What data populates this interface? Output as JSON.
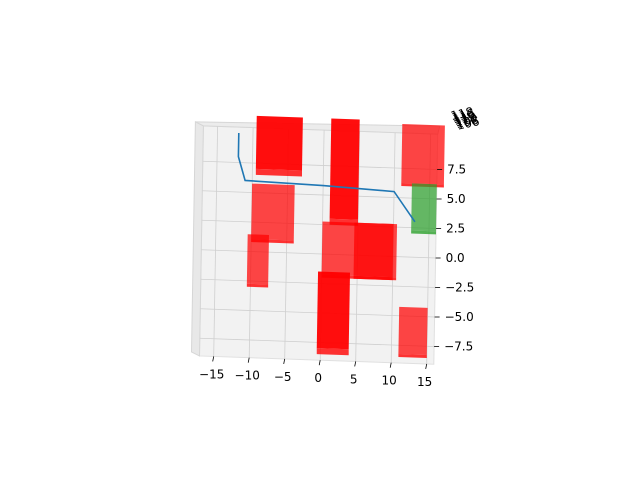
{
  "chart_data": {
    "type": "3d-scene",
    "title": "",
    "xlabel": "",
    "ylabel": "",
    "zlabel": "",
    "xlim": [
      -17,
      16
    ],
    "ylim": [
      -9,
      10.5
    ],
    "grid": true,
    "x_ticks": [
      "−15",
      "−10",
      "−5",
      "0",
      "5",
      "10",
      "15"
    ],
    "y_ticks": [
      "7.5",
      "5.0",
      "2.5",
      "0.0",
      "−2.5",
      "−5.0",
      "−7.5"
    ],
    "z_ticks": [
      "118",
      "116",
      "114",
      "112",
      "110",
      "108",
      "106"
    ],
    "obstacle_color": "#ff0000",
    "goal_color": "#2ca02c",
    "path_color": "#1f77b4",
    "obstacles": [
      {
        "x": [
          -9.5,
          -3
        ],
        "y": [
          6.5,
          11
        ],
        "height": "tall"
      },
      {
        "x": [
          1,
          5
        ],
        "y": [
          2.5,
          11
        ],
        "height": "tall"
      },
      {
        "x": [
          11,
          17
        ],
        "y": [
          6,
          11
        ],
        "height": "short"
      },
      {
        "x": [
          -10,
          -4
        ],
        "y": [
          0.8,
          5.5
        ],
        "height": "short"
      },
      {
        "x": [
          -10.5,
          -7.5
        ],
        "y": [
          -3,
          1.2
        ],
        "height": "short"
      },
      {
        "x": [
          0,
          10.5
        ],
        "y": [
          -2,
          2.5
        ],
        "height": "short"
      },
      {
        "x": [
          -0.5,
          4
        ],
        "y": [
          -8.5,
          -2
        ],
        "height": "tall"
      },
      {
        "x": [
          11,
          15
        ],
        "y": [
          -8.5,
          -4.5
        ],
        "height": "short"
      },
      {
        "x": [
          4.5,
          10
        ],
        "y": [
          -2,
          2.5
        ],
        "height": "short"
      }
    ],
    "goal": {
      "x": [
        12.5,
        16
      ],
      "y": [
        2,
        6
      ],
      "height": "short"
    },
    "path": {
      "x": [
        -12,
        -12,
        -11,
        0,
        10,
        13
      ],
      "y": [
        10,
        8,
        6,
        5.8,
        5.5,
        3
      ]
    }
  }
}
